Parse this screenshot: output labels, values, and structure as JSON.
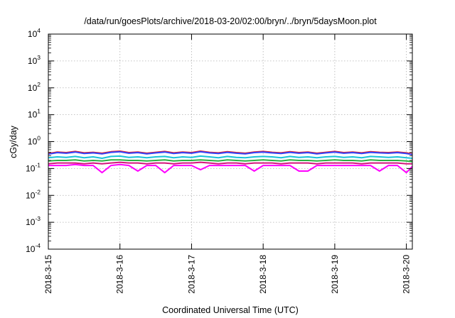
{
  "chart_data": {
    "type": "line",
    "title": "/data/run/goesPlots/archive/2018-03-20/02:00/bryn/../bryn/5daysMoon.plot",
    "xlabel": "Coordinated Universal Time (UTC)",
    "ylabel": "cGy/day",
    "y_scale": "log",
    "ylim": [
      0.0001,
      10000
    ],
    "xlim": [
      "2018-03-15T00:00",
      "2018-03-20T02:00"
    ],
    "grid": true,
    "legend": "none",
    "y_ticks": [
      {
        "base": "10",
        "exp": "-4"
      },
      {
        "base": "10",
        "exp": "-3"
      },
      {
        "base": "10",
        "exp": "-2"
      },
      {
        "base": "10",
        "exp": "-1"
      },
      {
        "base": "10",
        "exp": "0"
      },
      {
        "base": "10",
        "exp": "1"
      },
      {
        "base": "10",
        "exp": "2"
      },
      {
        "base": "10",
        "exp": "3"
      },
      {
        "base": "10",
        "exp": "4"
      }
    ],
    "x_ticks": [
      "2018-3-15",
      "2018-3-16",
      "2018-3-17",
      "2018-3-18",
      "2018-3-19",
      "2018-3-20"
    ],
    "x": [
      "2018-03-15T00:00",
      "2018-03-15T03:00",
      "2018-03-15T06:00",
      "2018-03-15T09:00",
      "2018-03-15T12:00",
      "2018-03-15T15:00",
      "2018-03-15T18:00",
      "2018-03-15T21:00",
      "2018-03-16T00:00",
      "2018-03-16T03:00",
      "2018-03-16T06:00",
      "2018-03-16T09:00",
      "2018-03-16T12:00",
      "2018-03-16T15:00",
      "2018-03-16T18:00",
      "2018-03-16T21:00",
      "2018-03-17T00:00",
      "2018-03-17T03:00",
      "2018-03-17T06:00",
      "2018-03-17T09:00",
      "2018-03-17T12:00",
      "2018-03-17T15:00",
      "2018-03-17T18:00",
      "2018-03-17T21:00",
      "2018-03-18T00:00",
      "2018-03-18T03:00",
      "2018-03-18T06:00",
      "2018-03-18T09:00",
      "2018-03-18T12:00",
      "2018-03-18T15:00",
      "2018-03-18T18:00",
      "2018-03-18T21:00",
      "2018-03-19T00:00",
      "2018-03-19T03:00",
      "2018-03-19T06:00",
      "2018-03-19T09:00",
      "2018-03-19T12:00",
      "2018-03-19T15:00",
      "2018-03-19T18:00",
      "2018-03-19T21:00",
      "2018-03-20T00:00",
      "2018-03-20T02:00"
    ],
    "series": [
      {
        "color": "#e41a1c",
        "values": [
          0.36,
          0.41,
          0.39,
          0.43,
          0.38,
          0.4,
          0.37,
          0.42,
          0.44,
          0.39,
          0.41,
          0.37,
          0.4,
          0.43,
          0.38,
          0.41,
          0.39,
          0.44,
          0.4,
          0.38,
          0.42,
          0.39,
          0.37,
          0.41,
          0.43,
          0.4,
          0.38,
          0.42,
          0.39,
          0.41,
          0.37,
          0.4,
          0.43,
          0.39,
          0.41,
          0.38,
          0.42,
          0.4,
          0.39,
          0.41,
          0.38,
          0.35
        ]
      },
      {
        "color": "#3344ff",
        "values": [
          0.34,
          0.39,
          0.37,
          0.41,
          0.36,
          0.38,
          0.35,
          0.4,
          0.42,
          0.37,
          0.39,
          0.35,
          0.38,
          0.41,
          0.36,
          0.39,
          0.37,
          0.42,
          0.38,
          0.36,
          0.4,
          0.37,
          0.35,
          0.39,
          0.41,
          0.38,
          0.36,
          0.4,
          0.37,
          0.39,
          0.35,
          0.38,
          0.41,
          0.37,
          0.39,
          0.36,
          0.4,
          0.38,
          0.37,
          0.39,
          0.36,
          0.33
        ]
      },
      {
        "color": "#17c3d8",
        "values": [
          0.25,
          0.27,
          0.26,
          0.28,
          0.25,
          0.27,
          0.24,
          0.28,
          0.29,
          0.26,
          0.27,
          0.25,
          0.27,
          0.28,
          0.25,
          0.27,
          0.26,
          0.29,
          0.27,
          0.25,
          0.28,
          0.26,
          0.25,
          0.27,
          0.28,
          0.27,
          0.25,
          0.28,
          0.26,
          0.27,
          0.25,
          0.27,
          0.28,
          0.26,
          0.27,
          0.25,
          0.28,
          0.27,
          0.26,
          0.27,
          0.25,
          0.24
        ]
      },
      {
        "color": "#2ab040",
        "values": [
          0.19,
          0.2,
          0.2,
          0.21,
          0.19,
          0.2,
          0.19,
          0.21,
          0.21,
          0.2,
          0.2,
          0.19,
          0.2,
          0.21,
          0.19,
          0.2,
          0.2,
          0.21,
          0.2,
          0.19,
          0.21,
          0.2,
          0.19,
          0.2,
          0.21,
          0.2,
          0.19,
          0.21,
          0.2,
          0.2,
          0.19,
          0.2,
          0.21,
          0.2,
          0.2,
          0.19,
          0.21,
          0.2,
          0.2,
          0.2,
          0.19,
          0.18
        ]
      },
      {
        "color": "#d4157a",
        "values": [
          0.15,
          0.16,
          0.16,
          0.16,
          0.15,
          0.16,
          0.15,
          0.16,
          0.17,
          0.16,
          0.16,
          0.15,
          0.16,
          0.16,
          0.15,
          0.16,
          0.16,
          0.17,
          0.16,
          0.15,
          0.16,
          0.16,
          0.15,
          0.16,
          0.16,
          0.16,
          0.15,
          0.16,
          0.16,
          0.16,
          0.15,
          0.16,
          0.16,
          0.16,
          0.16,
          0.15,
          0.16,
          0.16,
          0.16,
          0.16,
          0.15,
          0.15
        ]
      },
      {
        "color": "#ff00ff",
        "values": [
          0.13,
          0.13,
          0.13,
          0.14,
          0.13,
          0.13,
          0.07,
          0.13,
          0.14,
          0.13,
          0.08,
          0.13,
          0.13,
          0.07,
          0.13,
          0.13,
          0.13,
          0.09,
          0.13,
          0.13,
          0.13,
          0.13,
          0.13,
          0.08,
          0.13,
          0.13,
          0.13,
          0.13,
          0.08,
          0.08,
          0.13,
          0.13,
          0.13,
          0.13,
          0.13,
          0.13,
          0.13,
          0.08,
          0.13,
          0.13,
          0.07,
          0.12
        ]
      }
    ]
  }
}
